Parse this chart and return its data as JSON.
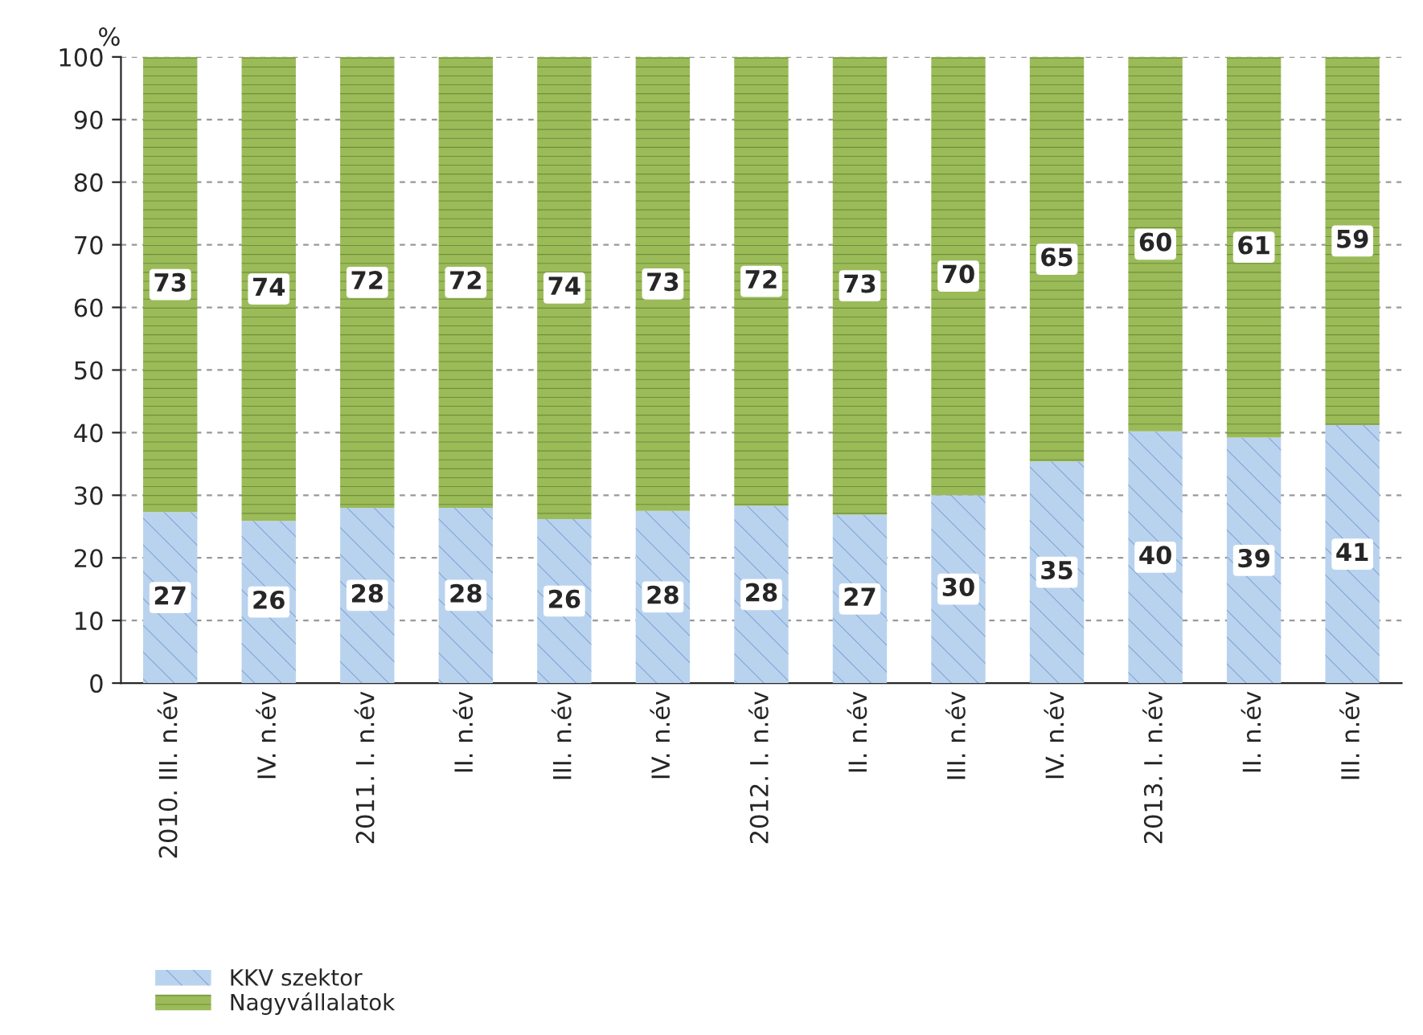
{
  "chart_data": {
    "type": "bar",
    "stacked": true,
    "ylabel": "%",
    "categories": [
      "2010. III. n.év",
      "IV. n.év",
      "2011. I. n.év",
      "II. n.év",
      "III. n.év",
      "IV. n.év",
      "2012. I. n.év",
      "II. n.év",
      "III. n.év",
      "IV. n.év",
      "2013. I. n.év",
      "II. n.év",
      "III. n.év"
    ],
    "series": [
      {
        "name": "KKV szektor",
        "color": "#b9d3ef",
        "values": [
          27.3,
          25.9,
          28,
          28,
          26.2,
          27.5,
          28.3,
          26.9,
          30,
          35.4,
          40.2,
          39.2,
          41.2
        ],
        "value_labels": [
          "27",
          "26",
          "28",
          "28",
          "26",
          "28",
          "28",
          "27",
          "30",
          "35",
          "40",
          "39",
          "41"
        ]
      },
      {
        "name": "Nagyvállalatok",
        "color": "#9bbb59",
        "values": [
          72.7,
          74.1,
          72,
          72,
          73.8,
          72.5,
          71.7,
          73.1,
          70,
          64.6,
          59.8,
          60.8,
          58.8
        ],
        "value_labels": [
          "73",
          "74",
          "72",
          "72",
          "74",
          "73",
          "72",
          "73",
          "70",
          "65",
          "60",
          "61",
          "59"
        ]
      }
    ],
    "ylim": [
      0,
      100
    ],
    "yticks": [
      0,
      10,
      20,
      30,
      40,
      50,
      60,
      70,
      80,
      90,
      100
    ],
    "grid": "y",
    "legend": "bottom left"
  }
}
